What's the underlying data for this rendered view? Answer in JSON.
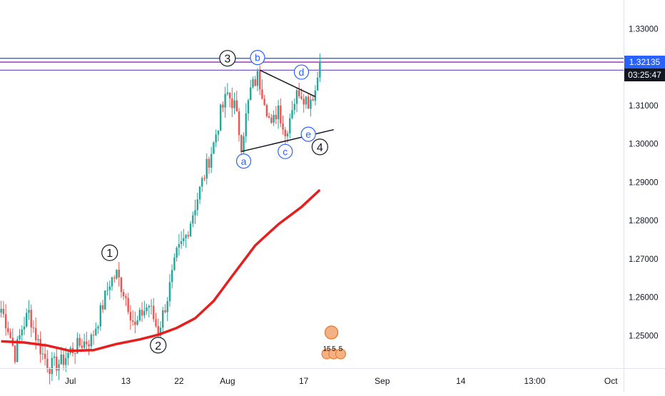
{
  "chart_data": {
    "type": "candlestick",
    "title": "",
    "xlabel": "",
    "ylabel": "",
    "ylim": [
      1.2415,
      1.3375
    ],
    "y_ticks": [
      "1.33000",
      "1.32000",
      "1.31000",
      "1.30000",
      "1.29000",
      "1.28000",
      "1.27000",
      "1.26000",
      "1.25000"
    ],
    "y_tick_values": [
      1.33,
      1.32,
      1.31,
      1.3,
      1.29,
      1.28,
      1.27,
      1.26,
      1.25
    ],
    "x_ticks": [
      "Jul",
      "13",
      "22",
      "Aug",
      "17",
      "Sep",
      "14",
      "13:00",
      "Oct"
    ],
    "x_tick_bars": [
      30,
      54,
      77,
      98,
      131,
      165,
      199,
      231,
      264
    ],
    "total_bars": 270,
    "last_bar": 138,
    "grid": false,
    "current_price": {
      "label": "1.32135",
      "value": 1.32135,
      "color": "#2962ff"
    },
    "countdown": {
      "label": "03:25:47",
      "color": "#131722"
    },
    "horizontal_levels": [
      {
        "value": 1.3223,
        "color": "#2962ff"
      },
      {
        "value": 1.3213,
        "color": "#9c27b0"
      },
      {
        "value": 1.3192,
        "color": "#7e57c2"
      }
    ],
    "moving_average": {
      "color": "#e61e1e",
      "points": [
        [
          0,
          1.2485
        ],
        [
          10,
          1.2482
        ],
        [
          20,
          1.2474
        ],
        [
          30,
          1.246
        ],
        [
          40,
          1.2462
        ],
        [
          50,
          1.2478
        ],
        [
          60,
          1.249
        ],
        [
          68,
          1.2502
        ],
        [
          76,
          1.252
        ],
        [
          84,
          1.2545
        ],
        [
          92,
          1.259
        ],
        [
          100,
          1.2655
        ],
        [
          110,
          1.2735
        ],
        [
          120,
          1.279
        ],
        [
          130,
          1.2835
        ],
        [
          138,
          1.288
        ]
      ]
    },
    "trendlines": [
      {
        "from": [
          112,
          1.3192
        ],
        "to": [
          136,
          1.3123
        ]
      },
      {
        "from": [
          104,
          1.298
        ],
        "to": [
          144,
          1.3037
        ]
      }
    ],
    "wave_labels": [
      {
        "text": "1",
        "style": "circle-black",
        "bar": 47,
        "y": 1.2716
      },
      {
        "text": "2",
        "style": "circle-black",
        "bar": 68,
        "y": 1.2475
      },
      {
        "text": "3",
        "style": "circle-black",
        "bar": 98,
        "y": 1.3223
      },
      {
        "text": "4",
        "style": "circle-black",
        "bar": 138,
        "y": 1.2992
      },
      {
        "text": "a",
        "style": "circle-blue",
        "bar": 105,
        "y": 1.2955
      },
      {
        "text": "b",
        "style": "circle-blue",
        "bar": 111,
        "y": 1.3225
      },
      {
        "text": "c",
        "style": "circle-blue",
        "bar": 123,
        "y": 1.298
      },
      {
        "text": "d",
        "style": "circle-blue",
        "bar": 130,
        "y": 1.3187
      },
      {
        "text": "e",
        "style": "circle-blue",
        "bar": 133,
        "y": 1.3025
      }
    ],
    "event_markers": [
      {
        "text": "15",
        "bar": 141
      },
      {
        "text": "5",
        "bar": 144
      },
      {
        "text": "5",
        "bar": 147
      }
    ],
    "candles_anchor": [
      [
        0,
        1.257
      ],
      [
        3,
        1.252
      ],
      [
        6,
        1.245
      ],
      [
        9,
        1.252
      ],
      [
        12,
        1.256
      ],
      [
        15,
        1.25
      ],
      [
        18,
        1.245
      ],
      [
        21,
        1.242
      ],
      [
        26,
        1.243
      ],
      [
        30,
        1.246
      ],
      [
        35,
        1.248
      ],
      [
        39,
        1.249
      ],
      [
        43,
        1.256
      ],
      [
        47,
        1.264
      ],
      [
        50,
        1.266
      ],
      [
        54,
        1.26
      ],
      [
        58,
        1.252
      ],
      [
        61,
        1.256
      ],
      [
        64,
        1.258
      ],
      [
        68,
        1.251
      ],
      [
        72,
        1.26
      ],
      [
        76,
        1.271
      ],
      [
        80,
        1.276
      ],
      [
        84,
        1.284
      ],
      [
        88,
        1.292
      ],
      [
        92,
        1.3
      ],
      [
        95,
        1.308
      ],
      [
        98,
        1.313
      ],
      [
        101,
        1.31
      ],
      [
        104,
        1.3
      ],
      [
        108,
        1.314
      ],
      [
        111,
        1.3175
      ],
      [
        114,
        1.312
      ],
      [
        117,
        1.304
      ],
      [
        120,
        1.31
      ],
      [
        123,
        1.302
      ],
      [
        126,
        1.31
      ],
      [
        129,
        1.314
      ],
      [
        133,
        1.311
      ],
      [
        136,
        1.314
      ],
      [
        138,
        1.3213
      ]
    ],
    "colors": {
      "up": "#26a69a",
      "down": "#ef5350"
    }
  }
}
